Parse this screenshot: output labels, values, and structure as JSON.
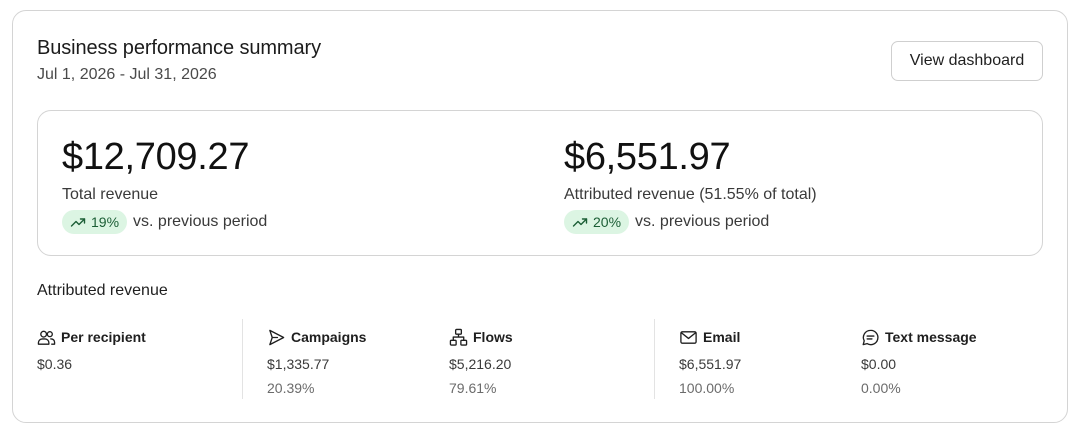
{
  "header": {
    "title": "Business performance summary",
    "date_range": "Jul 1, 2026 - Jul 31, 2026",
    "view_button": "View dashboard"
  },
  "kpis": [
    {
      "value": "$12,709.27",
      "label": "Total revenue",
      "change": "19%",
      "comparison": "vs. previous period"
    },
    {
      "value": "$6,551.97",
      "label": "Attributed revenue (51.55% of total)",
      "change": "20%",
      "comparison": "vs. previous period"
    }
  ],
  "attributed": {
    "title": "Attributed revenue",
    "metrics": [
      {
        "icon": "users-icon",
        "label": "Per recipient",
        "value": "$0.36",
        "percent": ""
      },
      {
        "icon": "send-icon",
        "label": "Campaigns",
        "value": "$1,335.77",
        "percent": "20.39%"
      },
      {
        "icon": "flow-icon",
        "label": "Flows",
        "value": "$5,216.20",
        "percent": "79.61%"
      },
      {
        "icon": "mail-icon",
        "label": "Email",
        "value": "$6,551.97",
        "percent": "100.00%"
      },
      {
        "icon": "message-icon",
        "label": "Text message",
        "value": "$0.00",
        "percent": "0.00%"
      }
    ]
  },
  "colors": {
    "trend_pill_bg": "#dcf5e3",
    "trend_pill_text": "#1b5e35",
    "border": "#d4d4d4"
  }
}
